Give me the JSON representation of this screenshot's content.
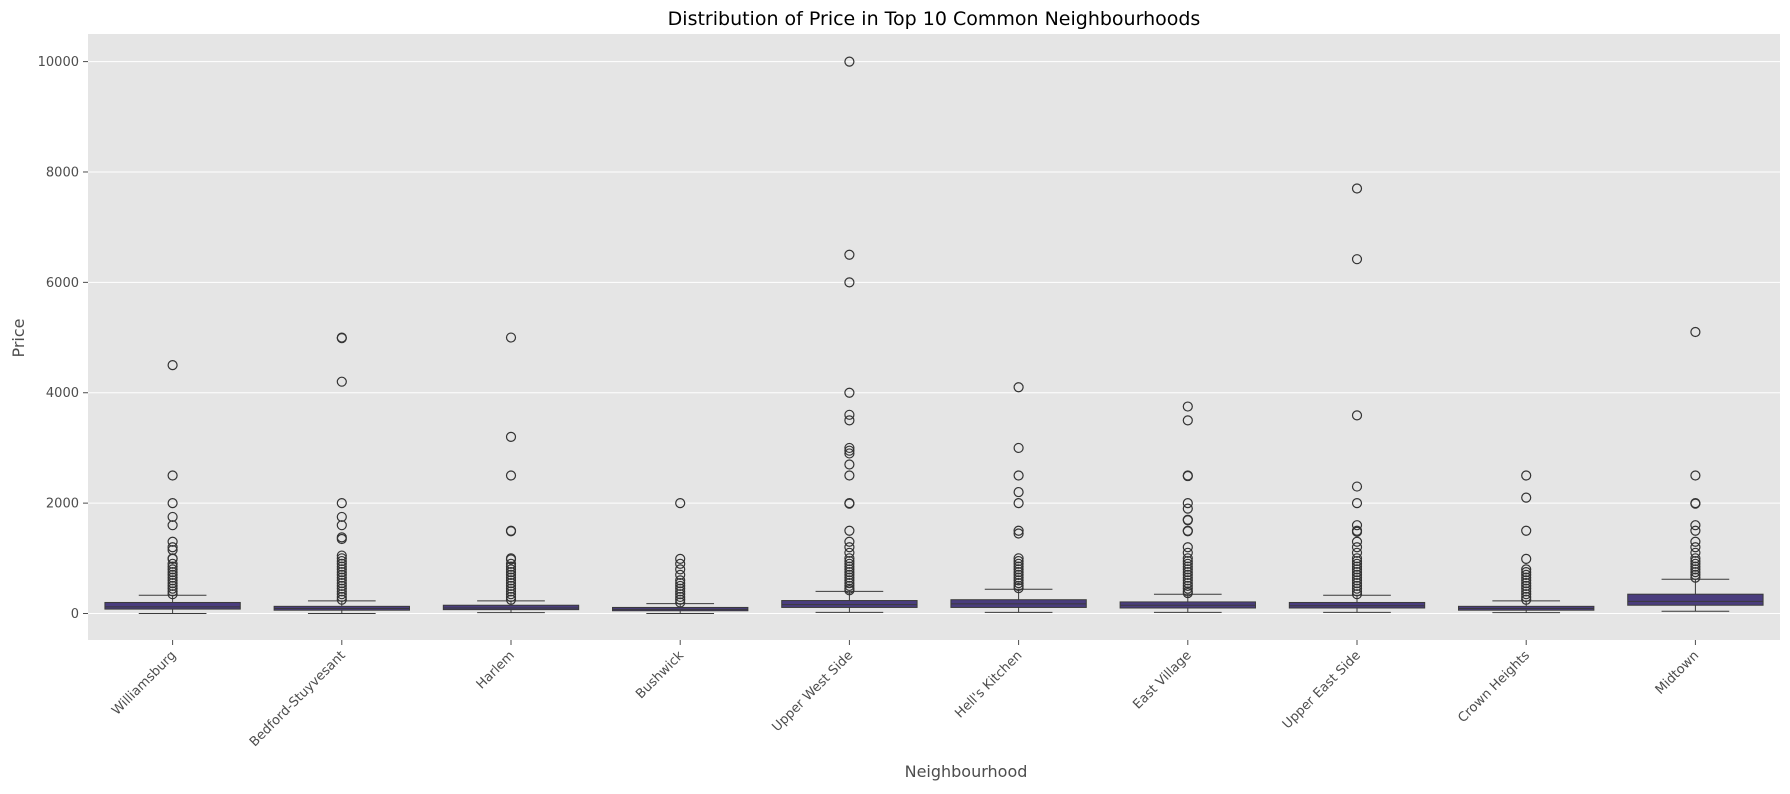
{
  "chart_data": {
    "type": "box",
    "title": "Distribution of Price in Top 10 Common Neighbourhoods",
    "xlabel": "Neighbourhood",
    "ylabel": "Price",
    "ylim": [
      -480,
      10500
    ],
    "yticks": [
      0,
      2000,
      4000,
      6000,
      8000,
      10000
    ],
    "grid": true,
    "box_color": "#4a3d7e",
    "background_color": "#e5e5e5",
    "grid_color": "#ffffff",
    "categories": [
      "Williamsburg",
      "Bedford-Stuyvesant",
      "Harlem",
      "Bushwick",
      "Upper West Side",
      "Hell's Kitchen",
      "East Village",
      "Upper East Side",
      "Crown Heights",
      "Midtown"
    ],
    "boxes": [
      {
        "label": "Williamsburg",
        "whisker_low": 0,
        "q1": 80,
        "median": 120,
        "q3": 200,
        "whisker_high": 330,
        "outliers": [
          4500,
          2500,
          2000,
          1750,
          1600,
          1300,
          1200,
          1150,
          1000,
          990,
          900,
          850,
          800,
          750,
          700,
          650,
          600,
          550,
          500,
          450,
          400,
          350
        ]
      },
      {
        "label": "Bedford-Stuyvesant",
        "whisker_low": 0,
        "q1": 60,
        "median": 90,
        "q3": 130,
        "whisker_high": 230,
        "outliers": [
          5000,
          4990,
          4200,
          2000,
          1750,
          1600,
          1380,
          1350,
          1050,
          1000,
          950,
          900,
          850,
          800,
          750,
          700,
          650,
          600,
          550,
          500,
          450,
          400,
          350,
          300,
          250
        ]
      },
      {
        "label": "Harlem",
        "whisker_low": 15,
        "q1": 70,
        "median": 100,
        "q3": 150,
        "whisker_high": 230,
        "outliers": [
          5000,
          3200,
          2500,
          1500,
          1490,
          1000,
          980,
          900,
          850,
          800,
          750,
          700,
          650,
          600,
          550,
          500,
          450,
          400,
          350,
          300,
          250
        ]
      },
      {
        "label": "Bushwick",
        "whisker_low": 0,
        "q1": 50,
        "median": 75,
        "q3": 110,
        "whisker_high": 180,
        "outliers": [
          2000,
          990,
          900,
          800,
          700,
          600,
          550,
          500,
          450,
          400,
          350,
          300,
          250,
          200
        ]
      },
      {
        "label": "Upper West Side",
        "whisker_low": 20,
        "q1": 110,
        "median": 160,
        "q3": 235,
        "whisker_high": 400,
        "outliers": [
          10000,
          6500,
          6000,
          4000,
          3600,
          3500,
          3000,
          2950,
          2900,
          2700,
          2500,
          2000,
          1990,
          1500,
          1300,
          1200,
          1100,
          1000,
          950,
          900,
          850,
          800,
          750,
          700,
          650,
          600,
          550,
          500,
          450,
          420
        ]
      },
      {
        "label": "Hell's Kitchen",
        "whisker_low": 20,
        "q1": 110,
        "median": 175,
        "q3": 250,
        "whisker_high": 440,
        "outliers": [
          4100,
          3000,
          2500,
          2200,
          2000,
          1500,
          1450,
          1000,
          950,
          900,
          850,
          800,
          750,
          700,
          650,
          600,
          550,
          500,
          460
        ]
      },
      {
        "label": "East Village",
        "whisker_low": 20,
        "q1": 100,
        "median": 150,
        "q3": 210,
        "whisker_high": 350,
        "outliers": [
          3750,
          3500,
          2500,
          2490,
          2000,
          1900,
          1700,
          1690,
          1500,
          1490,
          1200,
          1100,
          1000,
          950,
          900,
          850,
          800,
          750,
          700,
          650,
          600,
          550,
          500,
          450,
          400,
          370
        ]
      },
      {
        "label": "Upper East Side",
        "whisker_low": 20,
        "q1": 100,
        "median": 140,
        "q3": 200,
        "whisker_high": 330,
        "outliers": [
          7700,
          6420,
          3590,
          2300,
          2000,
          1600,
          1500,
          1480,
          1300,
          1200,
          1100,
          1000,
          950,
          900,
          850,
          800,
          750,
          700,
          650,
          600,
          550,
          500,
          450,
          400,
          350
        ]
      },
      {
        "label": "Crown Heights",
        "whisker_low": 15,
        "q1": 60,
        "median": 90,
        "q3": 130,
        "whisker_high": 230,
        "outliers": [
          2500,
          2100,
          1500,
          990,
          800,
          750,
          700,
          650,
          600,
          550,
          500,
          450,
          400,
          350,
          300,
          250
        ]
      },
      {
        "label": "Midtown",
        "whisker_low": 40,
        "q1": 150,
        "median": 220,
        "q3": 350,
        "whisker_high": 620,
        "outliers": [
          5100,
          2500,
          2000,
          1990,
          1600,
          1500,
          1300,
          1200,
          1100,
          1000,
          950,
          900,
          850,
          800,
          750,
          700,
          650
        ]
      }
    ]
  }
}
